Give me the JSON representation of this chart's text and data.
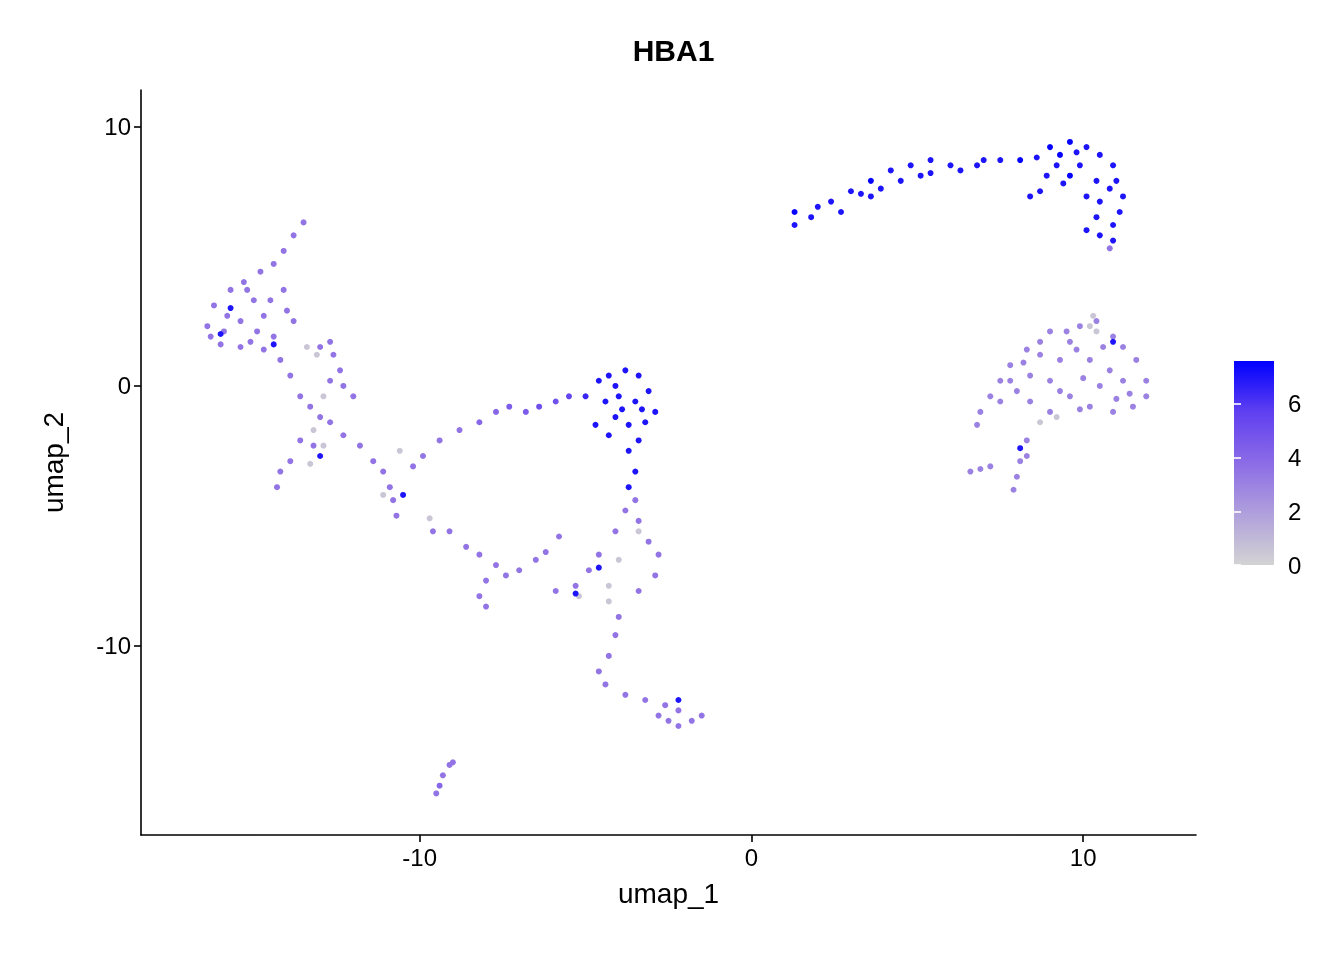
{
  "chart_data": {
    "type": "scatter",
    "title": "HBA1",
    "xlabel": "umap_1",
    "ylabel": "umap_2",
    "xlim": [
      -18.4,
      13.4
    ],
    "ylim": [
      -17.3,
      11.4
    ],
    "xticks": [
      -10,
      0,
      10
    ],
    "yticks": [
      -10,
      0,
      10
    ],
    "clim": [
      0,
      7.6
    ],
    "cticks": [
      0,
      2,
      4,
      6
    ],
    "grid": false,
    "marker": "circle",
    "x": [
      -13.5,
      -13.8,
      -14.1,
      -14.4,
      -14.8,
      -15.3,
      -15.7,
      -16.2,
      -16.4,
      -16.3,
      -15.9,
      -15.4,
      -15.0,
      -14.7,
      -15.1,
      -15.4,
      -14.7,
      -14.4,
      -14.5,
      -14.1,
      -14.2,
      -13.9,
      -13.6,
      -13.3,
      -13.0,
      -13.8,
      -13.0,
      -12.7,
      -12.6,
      -12.4,
      -12.3,
      -12.0,
      -12.7,
      -13.1,
      -12.7,
      -12.3,
      -11.8,
      -11.4,
      -11.1,
      -10.9,
      -10.8,
      -10.7,
      -11.1,
      -10.5,
      -13.6,
      -13.2,
      -14.2,
      -13.9,
      -14.3,
      -12.9,
      -15.7,
      -16.0,
      -14.4,
      -13.0,
      -13.4,
      -12.9,
      -13.2,
      -10.6,
      -9.7,
      -13.3,
      -10.2,
      -9.9,
      -9.4,
      -8.8,
      -8.2,
      -7.7,
      -7.3,
      -6.8,
      -6.4,
      -5.9,
      -5.5,
      -5.0,
      -4.6,
      -4.3,
      -3.8,
      -3.4,
      -3.1,
      -2.9,
      -3.2,
      -3.7,
      -4.1,
      -4.4,
      -4.0,
      -3.5,
      -3.4,
      -3.7,
      -3.5,
      -3.7,
      -4.1,
      -4.7,
      -3.9,
      -3.3,
      -4.3,
      -3.5,
      -3.8,
      -3.4,
      -3.1,
      -2.8,
      -2.9,
      -3.4,
      -4.0,
      -4.1,
      -4.6,
      -4.9,
      -5.3,
      -5.9,
      -5.2,
      -4.3,
      -4.0,
      -4.1,
      -4.3,
      -4.6,
      -4.4,
      -3.8,
      -3.2,
      -2.6,
      -2.2,
      -1.8,
      -1.5,
      -2.5,
      -2.2,
      -2.8,
      -2.2,
      -5.3,
      -4.6,
      -4.3,
      -3.4,
      -9.1,
      -8.6,
      -8.2,
      -7.7,
      -7.4,
      -8.0,
      -8.2,
      -8.0,
      -7.0,
      -6.5,
      -6.2,
      -5.8,
      -9.6,
      -9.1,
      -9.3,
      -9.4,
      -9.5,
      -9.0,
      1.3,
      1.3,
      1.8,
      2.4,
      3.0,
      3.6,
      4.2,
      4.8,
      5.4,
      6.0,
      6.8,
      7.5,
      8.1,
      8.6,
      2.7,
      3.6,
      4.5,
      5.4,
      6.3,
      9.0,
      9.6,
      10.1,
      10.5,
      10.9,
      11.0,
      11.2,
      11.1,
      10.9,
      10.9,
      10.8,
      10.4,
      10.1,
      9.6,
      9.2,
      8.9,
      9.3,
      9.9,
      10.4,
      10.5,
      8.7,
      8.4,
      10.1,
      10.5,
      6.9,
      6.8,
      7.2,
      7.5,
      7.8,
      8.3,
      8.7,
      9.0,
      9.5,
      9.9,
      10.4,
      10.4,
      10.9,
      11.2,
      11.6,
      11.9,
      11.9,
      11.5,
      10.9,
      10.2,
      9.6,
      9.0,
      8.4,
      7.8,
      7.5,
      9.3,
      10.2,
      11.2,
      8.7,
      9.8,
      10.5,
      8.4,
      9.0,
      8.7,
      8.3,
      8.1,
      8.0,
      7.9,
      8.3,
      9.2,
      10.2,
      10.3,
      10.9,
      8.1,
      6.6,
      6.9,
      7.2,
      8.0,
      9.3,
      10.0,
      10.8,
      11.4,
      9.6,
      8.2,
      10.6,
      9.9,
      11.0,
      -15.8,
      -15.2,
      -14.9,
      -16.0,
      -14.0,
      2.0,
      3.3,
      3.9,
      5.1,
      7.0,
      9.4,
      10.8,
      9.8
    ],
    "values": [
      6.3,
      5.8,
      5.2,
      4.7,
      4.4,
      4.0,
      3.7,
      3.1,
      2.3,
      1.9,
      2.1,
      2.5,
      3.3,
      2.7,
      1.7,
      1.5,
      1.4,
      1.9,
      3.3,
      3.7,
      1.0,
      0.4,
      -0.4,
      -0.8,
      -1.2,
      2.5,
      1.5,
      1.7,
      1.2,
      0.6,
      0.0,
      -0.4,
      0.2,
      1.2,
      -1.4,
      -1.9,
      -2.3,
      -2.9,
      -3.3,
      -3.9,
      -4.4,
      -5.0,
      -4.2,
      -4.2,
      -2.1,
      -2.3,
      -3.3,
      -2.9,
      -3.9,
      -2.3,
      3.0,
      2.0,
      1.6,
      -2.7,
      1.5,
      -0.4,
      -1.7,
      -2.5,
      -5.1,
      -3.0,
      -3.1,
      -2.7,
      -2.1,
      -1.7,
      -1.4,
      -1.0,
      -0.8,
      -1.0,
      -0.8,
      -0.6,
      -0.4,
      -0.4,
      0.2,
      0.4,
      0.6,
      0.4,
      -0.2,
      -1.0,
      -1.4,
      -1.5,
      -1.2,
      -0.6,
      -0.4,
      -0.6,
      -2.1,
      -2.5,
      -3.3,
      -3.9,
      0.0,
      -1.5,
      -0.9,
      -0.9,
      -1.9,
      -4.4,
      -4.8,
      -5.2,
      -6.0,
      -6.5,
      -7.3,
      -7.9,
      -6.7,
      -5.6,
      -6.5,
      -7.1,
      -7.7,
      -7.9,
      -8.1,
      -8.3,
      -8.9,
      -9.6,
      -10.4,
      -11.0,
      -11.5,
      -11.9,
      -12.1,
      -12.3,
      -12.5,
      -12.9,
      -12.7,
      -12.9,
      -13.1,
      -12.7,
      -12.1,
      -8.0,
      -7.0,
      -7.7,
      -5.6,
      -5.6,
      -6.2,
      -6.5,
      -6.9,
      -7.3,
      -7.5,
      -8.1,
      -8.5,
      -7.1,
      -6.7,
      -6.4,
      -5.8,
      -5.6,
      -14.6,
      -15.0,
      -15.4,
      -15.7,
      -14.5,
      6.2,
      6.7,
      6.5,
      7.1,
      7.5,
      7.9,
      8.3,
      8.5,
      8.7,
      8.5,
      8.5,
      8.7,
      8.7,
      8.8,
      6.7,
      7.3,
      7.9,
      8.2,
      8.3,
      9.2,
      9.4,
      9.2,
      8.9,
      8.5,
      7.9,
      7.3,
      6.7,
      6.2,
      5.6,
      5.3,
      6.5,
      7.3,
      8.1,
      8.5,
      8.1,
      8.9,
      8.5,
      7.9,
      7.1,
      7.5,
      7.3,
      6.0,
      5.8,
      -1.0,
      -1.5,
      -0.4,
      0.2,
      0.8,
      1.4,
      1.7,
      2.1,
      2.1,
      2.3,
      2.5,
      2.1,
      1.9,
      1.5,
      1.0,
      0.2,
      -0.4,
      -0.8,
      -1.0,
      -0.8,
      -0.4,
      0.2,
      0.4,
      0.2,
      -0.6,
      1.0,
      1.0,
      0.2,
      1.2,
      1.4,
      0.0,
      -0.6,
      -1.0,
      -1.4,
      -2.1,
      -2.9,
      -3.5,
      -4.0,
      -2.7,
      -1.2,
      2.3,
      2.7,
      1.7,
      -2.4,
      -3.3,
      -3.2,
      -3.1,
      -0.2,
      -0.2,
      0.3,
      0.6,
      -0.3,
      1.7,
      0.9,
      1.5,
      -0.9,
      -0.5,
      2.7,
      3.7,
      2.1,
      1.6,
      2.9,
      6.9,
      7.4,
      7.6,
      8.1,
      8.7,
      7.8,
      7.6,
      9.0
    ],
    "cvalues": [
      3.5,
      3.5,
      3.5,
      3.5,
      3.5,
      3.5,
      3.5,
      3.5,
      3.5,
      3.5,
      3.5,
      3.5,
      3.5,
      3.5,
      3.5,
      3.5,
      3.5,
      3.5,
      3.5,
      3.5,
      3.5,
      3.5,
      3.5,
      3.5,
      3.5,
      3.5,
      3.5,
      3.5,
      3.5,
      3.5,
      3.5,
      3.5,
      3.5,
      0.5,
      3.5,
      3.5,
      3.5,
      3.5,
      3.5,
      3.5,
      3.5,
      3.5,
      0.5,
      7,
      3.5,
      3.5,
      3.5,
      3.5,
      3.5,
      0.5,
      7,
      7,
      7,
      7,
      0.5,
      0.5,
      0.5,
      0.5,
      0.5,
      0.5,
      3.5,
      3.5,
      3.5,
      3.5,
      4,
      4,
      4.5,
      4.5,
      5,
      5,
      5.5,
      6.5,
      7,
      7,
      7,
      7,
      7,
      7,
      7,
      7,
      7,
      7,
      7,
      7,
      7,
      7,
      7,
      7,
      7,
      7,
      7,
      7,
      7,
      3.5,
      3.5,
      3.5,
      3.5,
      3.5,
      3.5,
      3.5,
      0.5,
      3.5,
      3.5,
      3.5,
      3.5,
      3.5,
      0.5,
      0.5,
      3.5,
      3.5,
      3.5,
      3.5,
      3.5,
      3.5,
      3.5,
      3.5,
      3.5,
      3.5,
      3.5,
      3.5,
      3.5,
      3.5,
      7,
      7,
      7,
      0.5,
      0.5,
      3.5,
      3.5,
      3.5,
      3.5,
      3.5,
      3.5,
      3.5,
      3.5,
      3.5,
      3.5,
      3.5,
      3.5,
      3.5,
      3.5,
      3.5,
      4,
      3.5,
      3.5,
      7,
      7.5,
      7,
      7,
      7,
      7.5,
      7,
      7,
      7,
      7,
      7,
      7,
      7.5,
      7,
      7,
      7,
      7,
      7,
      7,
      7.5,
      7.5,
      7,
      7,
      7,
      7,
      7,
      7,
      7,
      7,
      3.5,
      7,
      7,
      7.5,
      7,
      7,
      7.5,
      7,
      7,
      7,
      7,
      7,
      7,
      7,
      3,
      3,
      3,
      3,
      3,
      3,
      3,
      3,
      3,
      3,
      3,
      0.5,
      3,
      3,
      3,
      3,
      3,
      3,
      3,
      3,
      3,
      3,
      3,
      3,
      3,
      3,
      3,
      3,
      3,
      3,
      3,
      3,
      3,
      0.5,
      3,
      3,
      3,
      3,
      3,
      0.5,
      0.5,
      0.5,
      7,
      7,
      3,
      3,
      3,
      3,
      3,
      3,
      3,
      3,
      3,
      3,
      3,
      3,
      3,
      3.5,
      3.5,
      3.5,
      3.5,
      3.5,
      7,
      7,
      7,
      7,
      7,
      7,
      7,
      7
    ]
  }
}
